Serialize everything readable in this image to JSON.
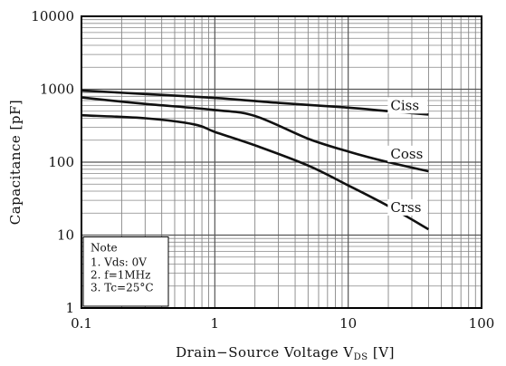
{
  "chart_data": {
    "type": "line",
    "xscale": "log",
    "yscale": "log",
    "xlim": [
      0.1,
      100
    ],
    "ylim": [
      1,
      10000
    ],
    "grid": true,
    "xlabel": "Drain−Source Voltage V",
    "xlabel_sub": "DS",
    "xlabel_unit": "[V]",
    "ylabel": "Capacitance [pF]",
    "x_ticks": [
      "0.1",
      "1",
      "10",
      "100"
    ],
    "y_ticks": [
      "1",
      "10",
      "100",
      "1000",
      "10000"
    ],
    "series": [
      {
        "name": "Ciss",
        "x": [
          0.1,
          0.3,
          1,
          3,
          10,
          20,
          40
        ],
        "y": [
          960,
          860,
          760,
          650,
          560,
          500,
          450
        ]
      },
      {
        "name": "Coss",
        "x": [
          0.1,
          0.3,
          1,
          2,
          5,
          10,
          20,
          40
        ],
        "y": [
          770,
          630,
          520,
          430,
          210,
          140,
          100,
          75
        ]
      },
      {
        "name": "Crss",
        "x": [
          0.1,
          0.3,
          0.7,
          1,
          2,
          5,
          10,
          20,
          40
        ],
        "y": [
          440,
          400,
          330,
          260,
          170,
          90,
          48,
          25,
          12
        ]
      }
    ],
    "note": {
      "title": "Note",
      "lines": [
        "1. Vds: 0V",
        "2. f=1MHz",
        "3. Tc=25°C"
      ]
    }
  }
}
